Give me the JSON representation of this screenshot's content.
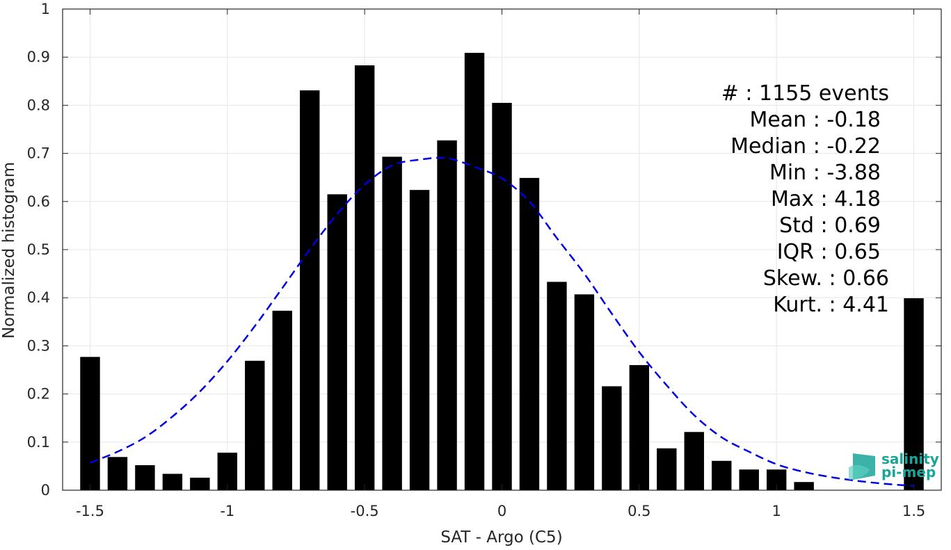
{
  "chart_data": {
    "type": "bar",
    "xlabel": "SAT - Argo (C5)",
    "ylabel": "Normalized histogram",
    "xlim": [
      -1.6,
      1.6
    ],
    "ylim": [
      0,
      1
    ],
    "x_ticks": [
      -1.5,
      -1,
      -0.5,
      0,
      0.5,
      1,
      1.5
    ],
    "x_tick_labels": [
      "-1.5",
      "-1",
      "-0.5",
      "0",
      "0.5",
      "1",
      "1.5"
    ],
    "y_ticks": [
      0,
      0.1,
      0.2,
      0.3,
      0.4,
      0.5,
      0.6,
      0.7,
      0.8,
      0.9,
      1
    ],
    "y_tick_labels": [
      "0",
      "0.1",
      "0.2",
      "0.3",
      "0.4",
      "0.5",
      "0.6",
      "0.7",
      "0.8",
      "0.9",
      "1"
    ],
    "grid": true,
    "bar_color": "#000000",
    "bars": {
      "x": [
        -1.5,
        -1.4,
        -1.3,
        -1.2,
        -1.1,
        -1.0,
        -0.9,
        -0.8,
        -0.7,
        -0.6,
        -0.5,
        -0.4,
        -0.3,
        -0.2,
        -0.1,
        0.0,
        0.1,
        0.2,
        0.3,
        0.4,
        0.5,
        0.6,
        0.7,
        0.8,
        0.9,
        1.0,
        1.1,
        1.5
      ],
      "values": [
        0.277,
        0.069,
        0.052,
        0.034,
        0.026,
        0.078,
        0.269,
        0.373,
        0.831,
        0.615,
        0.883,
        0.693,
        0.624,
        0.727,
        0.909,
        0.805,
        0.649,
        0.433,
        0.407,
        0.216,
        0.26,
        0.087,
        0.121,
        0.061,
        0.043,
        0.043,
        0.017,
        0.399
      ]
    },
    "fit_curve": {
      "style": "dashed",
      "color": "#0000e6",
      "x": [
        -1.5,
        -1.4,
        -1.3,
        -1.2,
        -1.1,
        -1.0,
        -0.9,
        -0.8,
        -0.7,
        -0.6,
        -0.5,
        -0.4,
        -0.3,
        -0.2,
        -0.1,
        0.0,
        0.1,
        0.2,
        0.3,
        0.4,
        0.5,
        0.6,
        0.7,
        0.8,
        0.9,
        1.0,
        1.1,
        1.2,
        1.3,
        1.4,
        1.5
      ],
      "values": [
        0.057,
        0.08,
        0.11,
        0.153,
        0.205,
        0.268,
        0.341,
        0.42,
        0.5,
        0.574,
        0.635,
        0.675,
        0.687,
        0.69,
        0.672,
        0.648,
        0.6,
        0.524,
        0.45,
        0.367,
        0.287,
        0.218,
        0.156,
        0.11,
        0.08,
        0.054,
        0.038,
        0.027,
        0.019,
        0.013,
        0.009
      ]
    },
    "stats": [
      {
        "label": "#  : 1155 events"
      },
      {
        "label": "Mean : -0.18"
      },
      {
        "label": "Median : -0.22"
      },
      {
        "label": "Min : -3.88"
      },
      {
        "label": "Max : 4.18"
      },
      {
        "label": "Std : 0.69"
      },
      {
        "label": "IQR : 0.65"
      },
      {
        "label": "Skew. : 0.66"
      },
      {
        "label": "Kurt. : 4.41"
      }
    ]
  },
  "logo": {
    "line1": "salinity",
    "line2": "pi-mep",
    "color": "#1aa59a"
  }
}
